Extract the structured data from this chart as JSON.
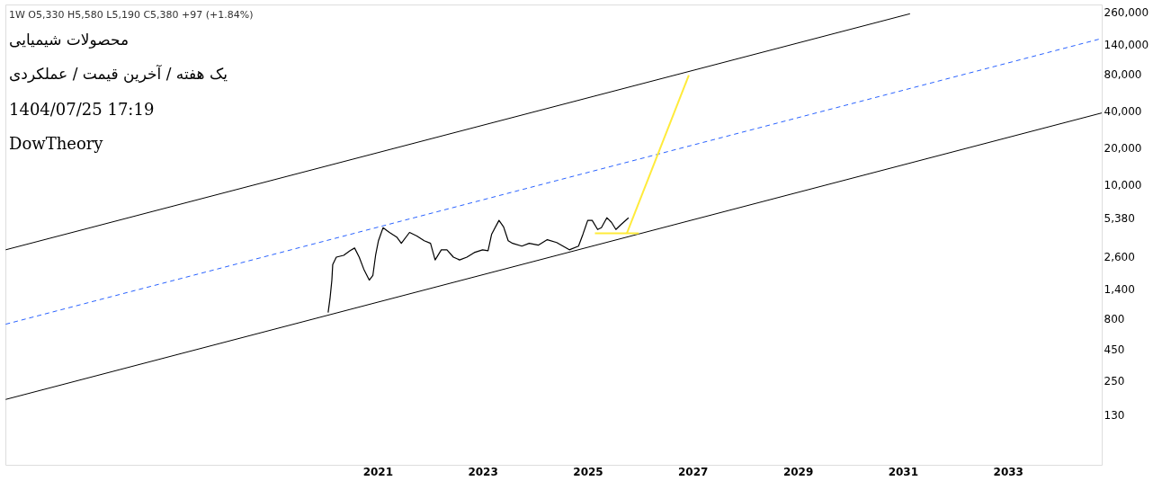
{
  "chart_data": {
    "type": "line",
    "title": "محصولات شیمیایی",
    "subtitle": "یک هفته / آخرین قیمت / عملکردی",
    "annotations": [
      "1W O5,330 H5,580 L5,190 C5,380 +97 (+1.84%)",
      "1404/07/25 17:19",
      "DowTheory"
    ],
    "log": true,
    "grid": false,
    "ylim": [
      51,
      300000
    ],
    "yticks": [
      130,
      250,
      450,
      800,
      {
        "value": 1400,
        "label": "1,400"
      },
      {
        "value": 2600,
        "label": "2,600"
      },
      {
        "value": 5380,
        "label": "5,380"
      },
      {
        "value": 10000,
        "label": "10,000"
      },
      {
        "value": 20000,
        "label": "20,000"
      },
      {
        "value": 40000,
        "label": "40,000"
      },
      {
        "value": 80000,
        "label": "80,000"
      },
      {
        "value": 140000,
        "label": "140,000"
      },
      {
        "value": 260000,
        "label": "260,000"
      }
    ],
    "xlim": [
      "2013-12-01",
      "2034-10-15"
    ],
    "xticks": [
      "2021",
      "2023",
      "2025",
      "2027",
      "2029",
      "2031",
      "2033"
    ],
    "series": [
      {
        "color": "#000000",
        "x": [
          "2020-01-23",
          "2020-02-05",
          "2020-02-18",
          "2020-02-24",
          "2020-03-20",
          "2020-05-10",
          "2020-06-24",
          "2020-07-25",
          "2020-08-26",
          "2020-09-27",
          "2020-11-04",
          "2020-11-29",
          "2020-12-18",
          "2021-01-07",
          "2021-02-08",
          "2021-03-24",
          "2021-05-14",
          "2021-06-15",
          "2021-08-11",
          "2021-10-01",
          "2021-11-21",
          "2022-01-04",
          "2022-02-05",
          "2022-03-20",
          "2022-04-28",
          "2022-06-12",
          "2022-07-25",
          "2022-09-14",
          "2022-11-04",
          "2023-01-01",
          "2023-02-08",
          "2023-03-05",
          "2023-04-25",
          "2023-05-27",
          "2023-06-28",
          "2023-07-29",
          "2023-10-01",
          "2023-11-21",
          "2024-01-23",
          "2024-03-26",
          "2024-05-30",
          "2024-07-13",
          "2024-08-26",
          "2024-10-29",
          "2024-11-29",
          "2025-01-01",
          "2025-02-01",
          "2025-03-11",
          "2025-04-06",
          "2025-05-14",
          "2025-06-15",
          "2025-07-16",
          "2025-08-17",
          "2025-10-12"
        ],
        "values": [
          900,
          1170,
          1660,
          2230,
          2560,
          2650,
          2890,
          3040,
          2560,
          2040,
          1660,
          1810,
          2650,
          3490,
          4460,
          4080,
          3740,
          3320,
          4080,
          3810,
          3490,
          3320,
          2430,
          2940,
          2940,
          2560,
          2430,
          2560,
          2790,
          2940,
          2890,
          3950,
          5120,
          4530,
          3490,
          3320,
          3150,
          3320,
          3210,
          3560,
          3370,
          3150,
          2940,
          3150,
          3950,
          5120,
          5120,
          4310,
          4460,
          5380,
          4940,
          4310,
          4690,
          5380
        ]
      },
      {
        "color": "#000000",
        "x": [
          "2013-12-03",
          "2031-02-20"
        ],
        "values": [
          2940,
          252000
        ]
      },
      {
        "color": "#000000",
        "x": [
          "2013-12-03",
          "2034-10-15"
        ],
        "values": [
          175,
          38800
        ]
      },
      {
        "color": "#2962ff",
        "line_style": "dashed",
        "x": [
          "2013-12-03",
          "2034-10-15"
        ],
        "values": [
          723,
          158000
        ]
      },
      {
        "color": "#ffeb3b",
        "x": [
          "2025-02-20",
          "2025-12-22"
        ],
        "values": [
          4010,
          4010
        ]
      },
      {
        "color": "#ffeb3b",
        "x": [
          "2025-09-30",
          "2026-12-05"
        ],
        "values": [
          4010,
          79000
        ]
      }
    ]
  }
}
